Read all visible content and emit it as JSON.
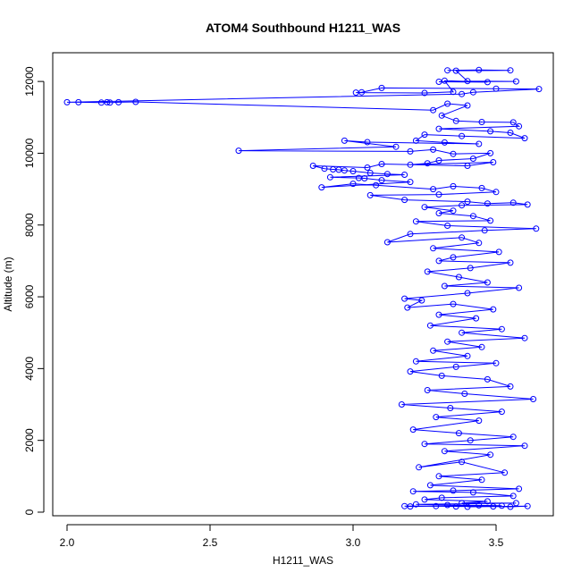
{
  "chart_data": {
    "type": "line",
    "title": "ATOM4 Southbound H1211_WAS",
    "xlabel": "H1211_WAS",
    "ylabel": "Altitude (m)",
    "xlim": [
      1.95,
      3.7
    ],
    "ylim": [
      -100,
      12800
    ],
    "x_ticks": [
      2.0,
      2.5,
      3.0,
      3.5
    ],
    "x_tick_labels": [
      "2.0",
      "2.5",
      "3.0",
      "3.5"
    ],
    "y_ticks": [
      0,
      2000,
      4000,
      6000,
      8000,
      10000,
      12000
    ],
    "y_tick_labels": [
      "0",
      "2000",
      "4000",
      "6000",
      "8000",
      "10000",
      "12000"
    ],
    "marker": "open-circle",
    "line_style": "connected",
    "series": [
      {
        "name": "H1211_WAS",
        "color": "#0000ff",
        "points": [
          [
            3.33,
            12310
          ],
          [
            3.44,
            12320
          ],
          [
            3.55,
            12310
          ],
          [
            3.36,
            12300
          ],
          [
            3.4,
            12010
          ],
          [
            3.57,
            12000
          ],
          [
            3.3,
            11990
          ],
          [
            3.47,
            11980
          ],
          [
            3.32,
            12020
          ],
          [
            3.35,
            11710
          ],
          [
            3.25,
            11680
          ],
          [
            3.01,
            11690
          ],
          [
            3.03,
            11700
          ],
          [
            3.1,
            11820
          ],
          [
            3.5,
            11800
          ],
          [
            3.65,
            11790
          ],
          [
            3.42,
            11700
          ],
          [
            3.38,
            11650
          ],
          [
            2.0,
            11420
          ],
          [
            2.04,
            11420
          ],
          [
            2.12,
            11410
          ],
          [
            2.14,
            11420
          ],
          [
            2.15,
            11410
          ],
          [
            2.18,
            11420
          ],
          [
            2.24,
            11430
          ],
          [
            3.28,
            11200
          ],
          [
            3.33,
            11380
          ],
          [
            3.4,
            11330
          ],
          [
            3.31,
            11050
          ],
          [
            3.36,
            10900
          ],
          [
            3.45,
            10870
          ],
          [
            3.56,
            10860
          ],
          [
            3.58,
            10750
          ],
          [
            3.3,
            10680
          ],
          [
            3.48,
            10610
          ],
          [
            3.55,
            10570
          ],
          [
            3.6,
            10420
          ],
          [
            3.38,
            10480
          ],
          [
            3.25,
            10520
          ],
          [
            3.22,
            10350
          ],
          [
            3.32,
            10300
          ],
          [
            3.44,
            10260
          ],
          [
            3.05,
            10310
          ],
          [
            2.97,
            10350
          ],
          [
            3.15,
            10180
          ],
          [
            2.6,
            10070
          ],
          [
            3.2,
            10050
          ],
          [
            3.28,
            10100
          ],
          [
            3.35,
            9980
          ],
          [
            3.48,
            10000
          ],
          [
            3.42,
            9850
          ],
          [
            3.3,
            9800
          ],
          [
            3.26,
            9720
          ],
          [
            3.2,
            9680
          ],
          [
            3.49,
            9750
          ],
          [
            3.4,
            9650
          ],
          [
            3.1,
            9700
          ],
          [
            3.05,
            9600
          ],
          [
            2.86,
            9650
          ],
          [
            2.9,
            9570
          ],
          [
            2.93,
            9550
          ],
          [
            2.95,
            9540
          ],
          [
            2.97,
            9520
          ],
          [
            3.0,
            9500
          ],
          [
            3.06,
            9450
          ],
          [
            3.12,
            9420
          ],
          [
            3.18,
            9400
          ],
          [
            2.92,
            9330
          ],
          [
            3.02,
            9310
          ],
          [
            3.04,
            9300
          ],
          [
            3.1,
            9250
          ],
          [
            3.2,
            9200
          ],
          [
            2.89,
            9050
          ],
          [
            3.0,
            9150
          ],
          [
            3.08,
            9110
          ],
          [
            3.28,
            9000
          ],
          [
            3.35,
            9080
          ],
          [
            3.45,
            9030
          ],
          [
            3.5,
            8920
          ],
          [
            3.3,
            8850
          ],
          [
            3.06,
            8830
          ],
          [
            3.18,
            8700
          ],
          [
            3.4,
            8650
          ],
          [
            3.47,
            8600
          ],
          [
            3.56,
            8620
          ],
          [
            3.61,
            8570
          ],
          [
            3.38,
            8550
          ],
          [
            3.25,
            8500
          ],
          [
            3.35,
            8400
          ],
          [
            3.3,
            8330
          ],
          [
            3.42,
            8250
          ],
          [
            3.48,
            8120
          ],
          [
            3.22,
            8100
          ],
          [
            3.33,
            7980
          ],
          [
            3.64,
            7900
          ],
          [
            3.46,
            7850
          ],
          [
            3.2,
            7750
          ],
          [
            3.12,
            7520
          ],
          [
            3.38,
            7650
          ],
          [
            3.44,
            7500
          ],
          [
            3.28,
            7350
          ],
          [
            3.51,
            7250
          ],
          [
            3.35,
            7100
          ],
          [
            3.3,
            7000
          ],
          [
            3.55,
            6950
          ],
          [
            3.41,
            6800
          ],
          [
            3.26,
            6700
          ],
          [
            3.37,
            6550
          ],
          [
            3.47,
            6400
          ],
          [
            3.32,
            6300
          ],
          [
            3.58,
            6250
          ],
          [
            3.4,
            6100
          ],
          [
            3.18,
            5950
          ],
          [
            3.24,
            5900
          ],
          [
            3.19,
            5700
          ],
          [
            3.35,
            5800
          ],
          [
            3.49,
            5650
          ],
          [
            3.3,
            5500
          ],
          [
            3.43,
            5400
          ],
          [
            3.27,
            5200
          ],
          [
            3.52,
            5100
          ],
          [
            3.38,
            5000
          ],
          [
            3.6,
            4850
          ],
          [
            3.33,
            4750
          ],
          [
            3.45,
            4600
          ],
          [
            3.28,
            4500
          ],
          [
            3.4,
            4350
          ],
          [
            3.22,
            4200
          ],
          [
            3.5,
            4150
          ],
          [
            3.36,
            4050
          ],
          [
            3.2,
            3920
          ],
          [
            3.31,
            3800
          ],
          [
            3.47,
            3700
          ],
          [
            3.55,
            3500
          ],
          [
            3.26,
            3400
          ],
          [
            3.39,
            3300
          ],
          [
            3.63,
            3150
          ],
          [
            3.17,
            3000
          ],
          [
            3.34,
            2900
          ],
          [
            3.52,
            2800
          ],
          [
            3.29,
            2650
          ],
          [
            3.44,
            2550
          ],
          [
            3.21,
            2300
          ],
          [
            3.37,
            2200
          ],
          [
            3.56,
            2100
          ],
          [
            3.41,
            2000
          ],
          [
            3.25,
            1900
          ],
          [
            3.6,
            1850
          ],
          [
            3.32,
            1700
          ],
          [
            3.48,
            1600
          ],
          [
            3.23,
            1250
          ],
          [
            3.38,
            1400
          ],
          [
            3.53,
            1100
          ],
          [
            3.3,
            1000
          ],
          [
            3.45,
            900
          ],
          [
            3.27,
            750
          ],
          [
            3.58,
            650
          ],
          [
            3.35,
            600
          ],
          [
            3.21,
            580
          ],
          [
            3.42,
            550
          ],
          [
            3.56,
            450
          ],
          [
            3.31,
            400
          ],
          [
            3.25,
            350
          ],
          [
            3.47,
            300
          ],
          [
            3.38,
            250
          ],
          [
            3.57,
            250
          ],
          [
            3.22,
            220
          ],
          [
            3.33,
            200
          ],
          [
            3.44,
            190
          ],
          [
            3.52,
            180
          ],
          [
            3.18,
            170
          ],
          [
            3.2,
            160
          ],
          [
            3.29,
            170
          ],
          [
            3.36,
            160
          ],
          [
            3.49,
            160
          ],
          [
            3.55,
            150
          ],
          [
            3.61,
            170
          ],
          [
            3.4,
            150
          ]
        ]
      }
    ]
  }
}
